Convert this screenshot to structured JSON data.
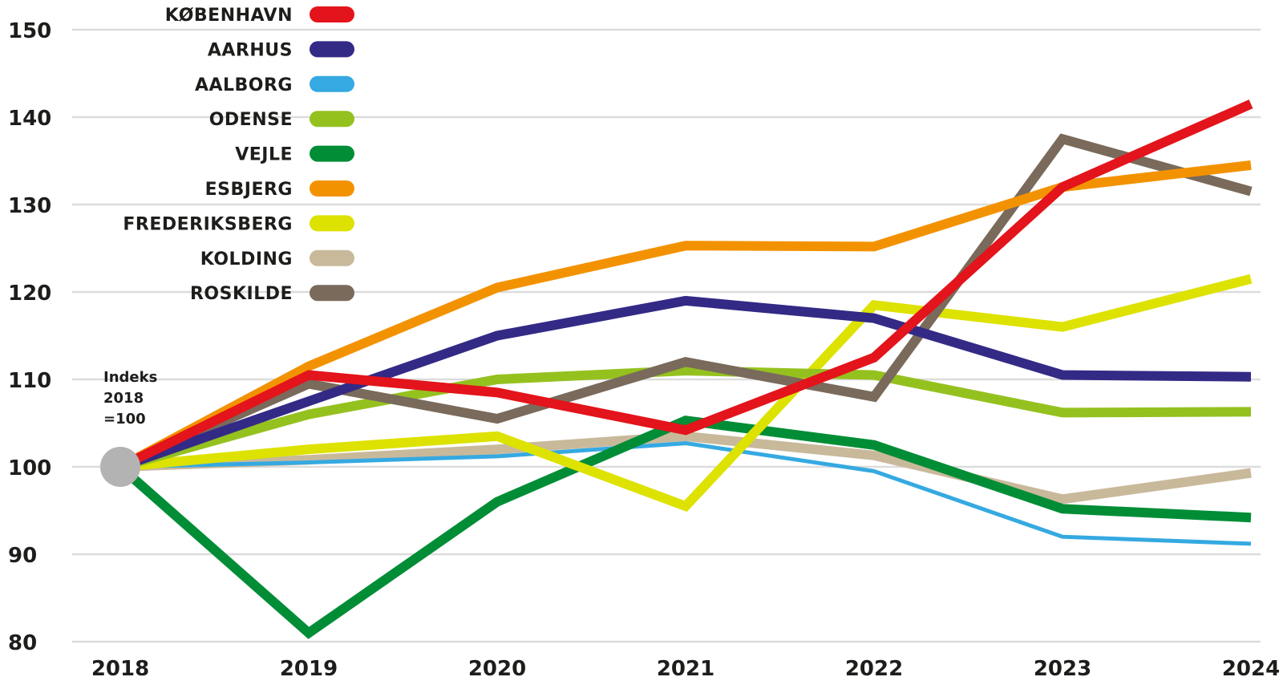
{
  "chart_data": {
    "type": "line",
    "x": [
      "2018",
      "2019",
      "2020",
      "2021",
      "2022",
      "2023",
      "2024"
    ],
    "ylim": [
      80,
      150
    ],
    "yticks": [
      80,
      90,
      100,
      110,
      120,
      130,
      140,
      150
    ],
    "grid": true,
    "legend_position": "top-left",
    "annotation": [
      "Indeks",
      "2018",
      "=100"
    ],
    "baseline_marker": {
      "x": "2018",
      "y": 100,
      "color": "#b3b3b3"
    },
    "series": [
      {
        "name": "KØBENHAVN",
        "color": "#e3141b",
        "values": [
          100,
          110.5,
          108.5,
          104.2,
          112.5,
          132,
          141.5
        ]
      },
      {
        "name": "AARHUS",
        "color": "#332a86",
        "values": [
          100,
          107.5,
          115,
          119,
          117,
          110.5,
          110.3
        ]
      },
      {
        "name": "AALBORG",
        "color": "#35a9e1",
        "values": [
          100,
          100.5,
          101.2,
          102.7,
          99.5,
          92,
          91.2
        ]
      },
      {
        "name": "ODENSE",
        "color": "#95c11f",
        "values": [
          100,
          106,
          110,
          111,
          110.5,
          106.2,
          106.3
        ]
      },
      {
        "name": "VEJLE",
        "color": "#008d36",
        "values": [
          100,
          81,
          96,
          105.3,
          102.5,
          95.2,
          94.2
        ]
      },
      {
        "name": "ESBJERG",
        "color": "#f39200",
        "values": [
          100,
          111.5,
          120.5,
          125.3,
          125.2,
          132,
          134.5
        ]
      },
      {
        "name": "FREDERIKSBERG",
        "color": "#dde200",
        "values": [
          100,
          102,
          103.5,
          95.5,
          118.5,
          116,
          121.5
        ]
      },
      {
        "name": "KOLDING",
        "color": "#c9b99b",
        "values": [
          100,
          100.8,
          102,
          103.5,
          101.3,
          96.3,
          99.3
        ]
      },
      {
        "name": "ROSKILDE",
        "color": "#796a5b",
        "values": [
          100,
          109.5,
          105.5,
          112,
          108,
          137.5,
          131.5
        ]
      }
    ]
  }
}
